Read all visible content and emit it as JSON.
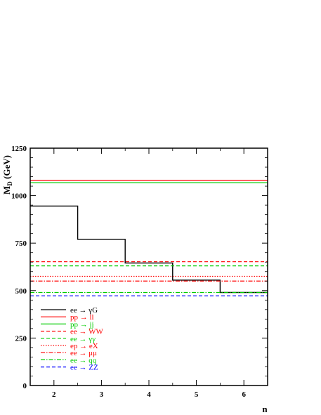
{
  "chart_data": {
    "type": "line",
    "title": "",
    "xlabel": "n",
    "ylabel": "M_D (GeV)",
    "ylabel_main": "M",
    "ylabel_sub": "D",
    "ylabel_unit": " (GeV)",
    "xlim": [
      1.5,
      6.5
    ],
    "ylim": [
      0,
      1250
    ],
    "x_ticks": [
      2,
      3,
      4,
      5,
      6
    ],
    "y_ticks": [
      0,
      250,
      500,
      750,
      1000,
      1250
    ],
    "grid": false,
    "legend_position": "bottom-left",
    "series": [
      {
        "name": "ee → γG",
        "color": "#000000",
        "dash": "solid",
        "kind": "step",
        "x": [
          2,
          3,
          4,
          5,
          6
        ],
        "values": [
          945,
          770,
          645,
          555,
          490
        ]
      },
      {
        "name": "pp → ll",
        "color": "#ff0000",
        "dash": "solid",
        "kind": "hline",
        "values": [
          1080
        ]
      },
      {
        "name": "pp → jj",
        "color": "#00cc00",
        "dash": "solid",
        "kind": "hline",
        "values": [
          1068
        ]
      },
      {
        "name": "ee → WW",
        "color": "#ff0000",
        "dash": "dashed",
        "kind": "hline",
        "values": [
          652
        ]
      },
      {
        "name": "ee → γγ",
        "color": "#00cc00",
        "dash": "dashed",
        "kind": "hline",
        "values": [
          630
        ]
      },
      {
        "name": "ep → eX",
        "color": "#ff0000",
        "dash": "dotted",
        "kind": "hline",
        "values": [
          575
        ]
      },
      {
        "name": "ee → μμ",
        "color": "#ff0000",
        "dash": "dashdot",
        "kind": "hline",
        "values": [
          550
        ]
      },
      {
        "name": "ee → qq",
        "color": "#00cc00",
        "dash": "dashdot",
        "kind": "hline",
        "values": [
          490
        ]
      },
      {
        "name": "ee → ZZ",
        "color": "#0000ff",
        "dash": "dashed",
        "kind": "hline",
        "values": [
          472
        ]
      }
    ]
  }
}
